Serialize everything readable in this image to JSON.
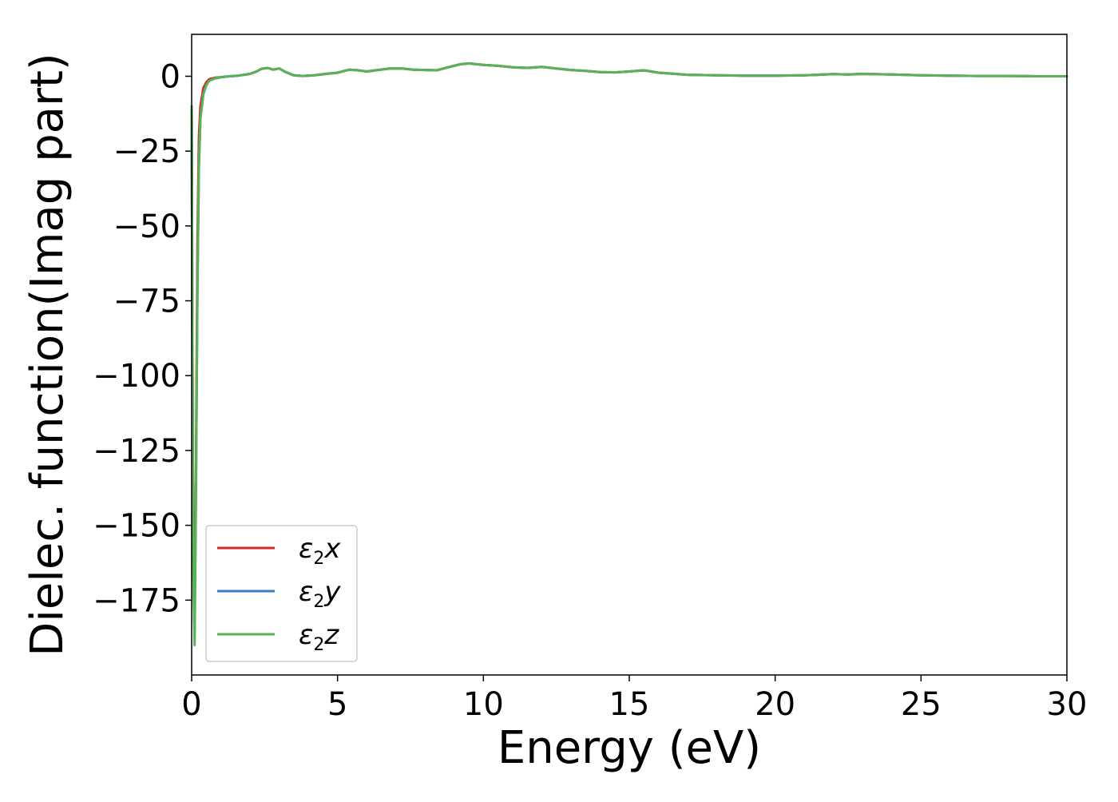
{
  "chart_data": {
    "type": "line",
    "title": "",
    "xlabel": "Energy (eV)",
    "ylabel": "Dielec. function(Imag part)",
    "xlim": [
      0,
      30
    ],
    "ylim": [
      -200,
      14
    ],
    "xticks": [
      0,
      5,
      10,
      15,
      20,
      25,
      30
    ],
    "yticks": [
      0,
      -25,
      -50,
      -75,
      -100,
      -125,
      -150,
      -175
    ],
    "xtick_labels": [
      "0",
      "5",
      "10",
      "15",
      "20",
      "25",
      "30"
    ],
    "ytick_labels": [
      "0",
      "−25",
      "−50",
      "−75",
      "−100",
      "−125",
      "−150",
      "−175"
    ],
    "grid": false,
    "legend_position": "lower-left",
    "x": [
      0.0,
      0.05,
      0.1,
      0.15,
      0.2,
      0.25,
      0.3,
      0.4,
      0.5,
      0.6,
      0.8,
      1.0,
      1.3,
      1.6,
      2.0,
      2.2,
      2.4,
      2.6,
      2.8,
      3.0,
      3.2,
      3.5,
      3.8,
      4.2,
      4.6,
      5.0,
      5.4,
      5.7,
      6.0,
      6.3,
      6.8,
      7.2,
      7.6,
      8.0,
      8.4,
      8.8,
      9.2,
      9.5,
      10.0,
      10.5,
      11.0,
      11.5,
      12.0,
      12.5,
      13.0,
      13.5,
      14.0,
      14.5,
      15.0,
      15.5,
      16.0,
      17.0,
      18.0,
      19.0,
      20.0,
      21.0,
      22.0,
      22.5,
      23.0,
      24.0,
      25.0,
      26.0,
      27.0,
      28.0,
      29.0,
      30.0
    ],
    "series": [
      {
        "name": "ε2x",
        "color": "#d62728",
        "values": [
          -10,
          -150,
          -180,
          -125,
          -55,
          -20,
          -10,
          -4,
          -2,
          -1,
          -0.5,
          -0.3,
          0,
          0.2,
          0.8,
          1.5,
          2.5,
          2.8,
          2.2,
          2.6,
          1.5,
          0.3,
          0.1,
          0.3,
          0.8,
          1.2,
          2.2,
          2.0,
          1.6,
          2.0,
          2.6,
          2.6,
          2.2,
          2.1,
          2.0,
          3.0,
          4.0,
          4.3,
          3.8,
          3.5,
          3.0,
          2.8,
          3.1,
          2.6,
          2.1,
          1.8,
          1.4,
          1.3,
          1.6,
          2.0,
          1.2,
          0.5,
          0.3,
          0.2,
          0.2,
          0.3,
          0.7,
          0.6,
          0.8,
          0.6,
          0.3,
          0.2,
          0.1,
          0.1,
          0.0,
          0.0
        ]
      },
      {
        "name": "ε2y",
        "color": "#3a7ebf",
        "values": [
          -10,
          -160,
          -186,
          -135,
          -70,
          -30,
          -14,
          -6,
          -3,
          -1.5,
          -0.7,
          -0.3,
          0,
          0.2,
          0.8,
          1.5,
          2.5,
          2.8,
          2.2,
          2.6,
          1.5,
          0.3,
          0.1,
          0.3,
          0.8,
          1.2,
          2.2,
          2.0,
          1.6,
          2.0,
          2.6,
          2.6,
          2.2,
          2.1,
          2.0,
          3.0,
          4.0,
          4.3,
          3.8,
          3.5,
          3.0,
          2.8,
          3.1,
          2.6,
          2.1,
          1.8,
          1.4,
          1.3,
          1.6,
          2.0,
          1.2,
          0.5,
          0.3,
          0.2,
          0.2,
          0.3,
          0.7,
          0.6,
          0.8,
          0.6,
          0.3,
          0.2,
          0.1,
          0.1,
          0.0,
          0.0
        ]
      },
      {
        "name": "ε2z",
        "color": "#5ab257",
        "values": [
          -10,
          -160,
          -190,
          -135,
          -70,
          -30,
          -14,
          -6,
          -3,
          -1.5,
          -0.7,
          -0.3,
          0,
          0.2,
          0.8,
          1.5,
          2.5,
          2.8,
          2.2,
          2.6,
          1.5,
          0.3,
          0.1,
          0.3,
          0.8,
          1.2,
          2.2,
          2.0,
          1.6,
          2.0,
          2.6,
          2.6,
          2.2,
          2.1,
          2.0,
          3.0,
          4.0,
          4.3,
          3.8,
          3.5,
          3.0,
          2.8,
          3.1,
          2.6,
          2.1,
          1.8,
          1.4,
          1.3,
          1.6,
          2.0,
          1.2,
          0.5,
          0.3,
          0.2,
          0.2,
          0.3,
          0.7,
          0.6,
          0.8,
          0.6,
          0.3,
          0.2,
          0.1,
          0.1,
          0.0,
          0.0
        ]
      }
    ],
    "legend": {
      "entries": [
        {
          "symbol": "ε",
          "subscript": "2",
          "suffix": "x",
          "color": "#d62728"
        },
        {
          "symbol": "ε",
          "subscript": "2",
          "suffix": "y",
          "color": "#3a7ebf"
        },
        {
          "symbol": "ε",
          "subscript": "2",
          "suffix": "z",
          "color": "#5ab257"
        }
      ]
    }
  }
}
